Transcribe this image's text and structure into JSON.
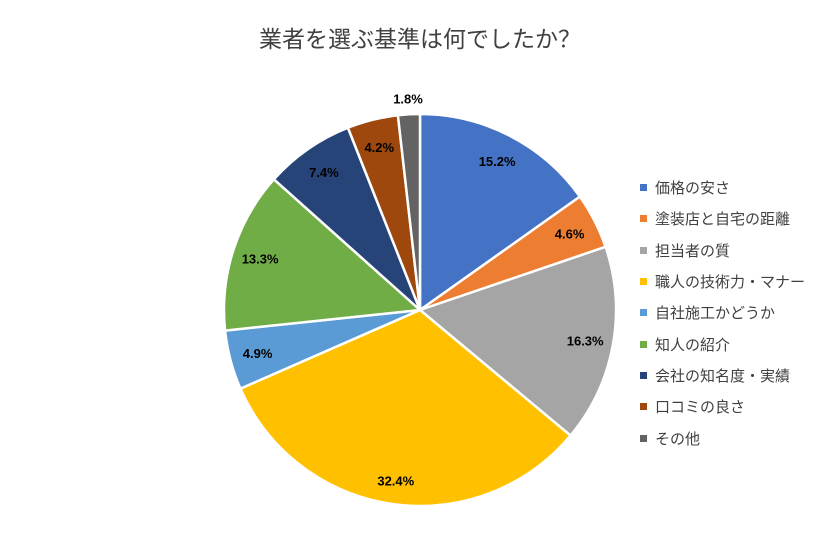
{
  "chart_data": {
    "type": "pie",
    "title": "業者を選ぶ基準は何でしたか？",
    "categories": [
      "価格の安さ",
      "塗装店と自宅の距離",
      "担当者の質",
      "職人の技術力・マナー",
      "自社施工かどうか",
      "知人の紹介",
      "会社の知名度・実績",
      "口コミの良さ",
      "その他"
    ],
    "values": [
      15.2,
      4.6,
      16.3,
      32.4,
      4.9,
      13.3,
      7.4,
      4.2,
      1.8
    ],
    "labels": [
      "15.2%",
      "4.6%",
      "16.3%",
      "32.4%",
      "4.9%",
      "13.3%",
      "7.4%",
      "4.2%",
      "1.8%"
    ],
    "colors": [
      "#4472C4",
      "#ED7D31",
      "#A5A5A5",
      "#FFC000",
      "#5B9BD5",
      "#70AD47",
      "#264478",
      "#9E480E",
      "#636363"
    ],
    "start": "12 o'clock, clockwise",
    "legend_position": "right"
  }
}
